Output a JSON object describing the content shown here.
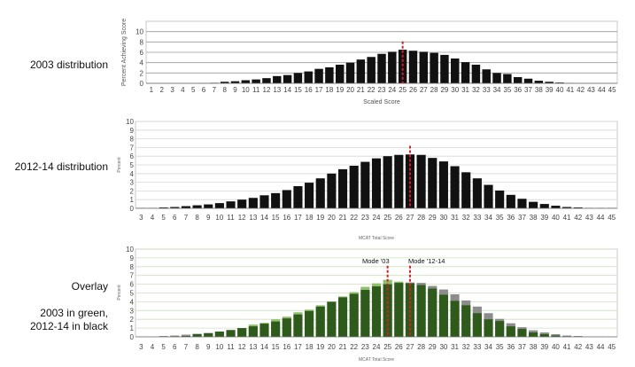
{
  "labels": {
    "chart1_side": "2003 distribution",
    "chart2_side": "2012-14 distribution",
    "chart3_side": "Overlay",
    "chart3_note1": "2003 in green,",
    "chart3_note2": "2012-14 in black"
  },
  "colors": {
    "bar_black": "#111111",
    "bar_green": "#2e5a1c",
    "bar_light_green": "#8fbf6a",
    "bar_gray": "#8c8c8c",
    "mode_line": "#d0202a",
    "grid": "#9a9a9a",
    "grid_green": "#cfe0c0"
  },
  "chart_data": [
    {
      "type": "bar",
      "title": "",
      "xlabel": "Scaled Score",
      "ylabel": "Percent Achieving Score",
      "ylim": [
        0,
        12
      ],
      "yticks": [
        "0",
        "2",
        "4",
        "6",
        "8",
        "10"
      ],
      "grid": true,
      "categories": [
        "1",
        "2",
        "3",
        "4",
        "5",
        "6",
        "7",
        "8",
        "9",
        "10",
        "11",
        "12",
        "13",
        "14",
        "15",
        "16",
        "17",
        "18",
        "19",
        "20",
        "21",
        "22",
        "23",
        "24",
        "25",
        "26",
        "27",
        "28",
        "29",
        "30",
        "31",
        "32",
        "33",
        "34",
        "35",
        "36",
        "37",
        "38",
        "39",
        "40",
        "41",
        "42",
        "43",
        "44",
        "45"
      ],
      "values": [
        0,
        0,
        0,
        0,
        0,
        0.05,
        0.1,
        0.3,
        0.4,
        0.6,
        0.75,
        1.0,
        1.4,
        1.6,
        2.0,
        2.3,
        2.8,
        3.1,
        3.6,
        4.0,
        4.6,
        5.1,
        5.7,
        6.1,
        6.5,
        6.3,
        6.1,
        5.9,
        5.5,
        4.8,
        4.1,
        3.6,
        2.7,
        2.0,
        1.8,
        1.2,
        0.9,
        0.5,
        0.3,
        0.15,
        0.05,
        0,
        0,
        0,
        0
      ],
      "mode_lines": [
        {
          "x": "25",
          "label": ""
        }
      ]
    },
    {
      "type": "bar",
      "title": "",
      "xlabel": "MCAT Total Score",
      "ylabel": "Percent",
      "ylim": [
        0,
        10
      ],
      "yticks": [
        "0",
        "1",
        "2",
        "3",
        "4",
        "5",
        "6",
        "7",
        "8",
        "9",
        "10"
      ],
      "grid": true,
      "categories": [
        "3",
        "4",
        "5",
        "6",
        "7",
        "8",
        "9",
        "10",
        "11",
        "12",
        "13",
        "14",
        "15",
        "16",
        "17",
        "18",
        "19",
        "20",
        "21",
        "22",
        "23",
        "24",
        "25",
        "26",
        "27",
        "28",
        "29",
        "30",
        "31",
        "32",
        "33",
        "34",
        "35",
        "36",
        "37",
        "38",
        "39",
        "40",
        "41",
        "42",
        "43",
        "44",
        "45"
      ],
      "values": [
        0.05,
        0.05,
        0.1,
        0.15,
        0.25,
        0.35,
        0.45,
        0.6,
        0.8,
        1.0,
        1.2,
        1.5,
        1.75,
        2.1,
        2.55,
        2.95,
        3.45,
        4.0,
        4.5,
        4.9,
        5.35,
        5.75,
        6.0,
        6.15,
        6.2,
        6.15,
        5.8,
        5.4,
        4.85,
        4.15,
        3.45,
        2.7,
        2.05,
        1.55,
        1.1,
        0.75,
        0.5,
        0.3,
        0.15,
        0.1,
        0.05,
        0.05,
        0.05
      ],
      "mode_lines": [
        {
          "x": "27",
          "label": ""
        }
      ]
    },
    {
      "type": "bar",
      "title": "",
      "xlabel": "MCAT Total Score",
      "ylabel": "Percent",
      "ylim": [
        0,
        10
      ],
      "yticks": [
        "0",
        "1",
        "2",
        "3",
        "4",
        "5",
        "6",
        "7",
        "8",
        "9",
        "10"
      ],
      "grid": true,
      "categories": [
        "3",
        "4",
        "5",
        "6",
        "7",
        "8",
        "9",
        "10",
        "11",
        "12",
        "13",
        "14",
        "15",
        "16",
        "17",
        "18",
        "19",
        "20",
        "21",
        "22",
        "23",
        "24",
        "25",
        "26",
        "27",
        "28",
        "29",
        "30",
        "31",
        "32",
        "33",
        "34",
        "35",
        "36",
        "37",
        "38",
        "39",
        "40",
        "41",
        "42",
        "43",
        "44",
        "45"
      ],
      "series": [
        {
          "values": [
            0,
            0,
            0,
            0.05,
            0.1,
            0.3,
            0.4,
            0.6,
            0.75,
            1.0,
            1.4,
            1.6,
            2.0,
            2.3,
            2.8,
            3.1,
            3.6,
            4.0,
            4.6,
            5.1,
            5.7,
            6.1,
            6.5,
            6.3,
            6.1,
            5.9,
            5.5,
            4.8,
            4.1,
            3.6,
            2.7,
            2.0,
            1.8,
            1.2,
            0.9,
            0.5,
            0.3,
            0.15,
            0.05,
            0,
            0,
            0,
            0
          ]
        },
        {
          "values": [
            0.05,
            0.05,
            0.1,
            0.15,
            0.25,
            0.35,
            0.45,
            0.6,
            0.8,
            1.0,
            1.2,
            1.5,
            1.75,
            2.1,
            2.55,
            2.95,
            3.45,
            4.0,
            4.5,
            4.9,
            5.35,
            5.75,
            6.0,
            6.15,
            6.2,
            6.15,
            5.8,
            5.4,
            4.85,
            4.15,
            3.45,
            2.7,
            2.05,
            1.55,
            1.1,
            0.75,
            0.5,
            0.3,
            0.15,
            0.1,
            0.05,
            0.05,
            0.05
          ]
        }
      ],
      "mode_lines": [
        {
          "x": "25",
          "label": "Mode '03"
        },
        {
          "x": "27",
          "label": "Mode '12-14"
        }
      ]
    }
  ]
}
